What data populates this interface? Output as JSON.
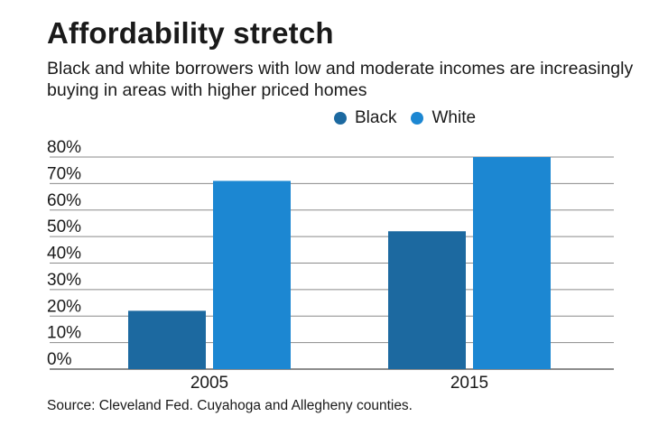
{
  "title": "Affordability stretch",
  "subtitle": "Black and white borrowers with low and moderate incomes are increasingly buying in areas with higher priced homes",
  "source": "Source: Cleveland Fed. Cuyahoga and Allegheny counties.",
  "chart_data": {
    "type": "bar",
    "categories": [
      "2005",
      "2015"
    ],
    "series": [
      {
        "name": "Black",
        "values": [
          22,
          52
        ],
        "color": "#1c69a0"
      },
      {
        "name": "White",
        "values": [
          71,
          80
        ],
        "color": "#1c87d2"
      }
    ],
    "ylim": [
      0,
      80
    ],
    "yticks": [
      0,
      10,
      20,
      30,
      40,
      50,
      60,
      70,
      80
    ],
    "ytick_labels": [
      "0%",
      "10%",
      "20%",
      "30%",
      "40%",
      "50%",
      "60%",
      "70%",
      "80%"
    ],
    "grid": true,
    "legend": "top-right"
  }
}
